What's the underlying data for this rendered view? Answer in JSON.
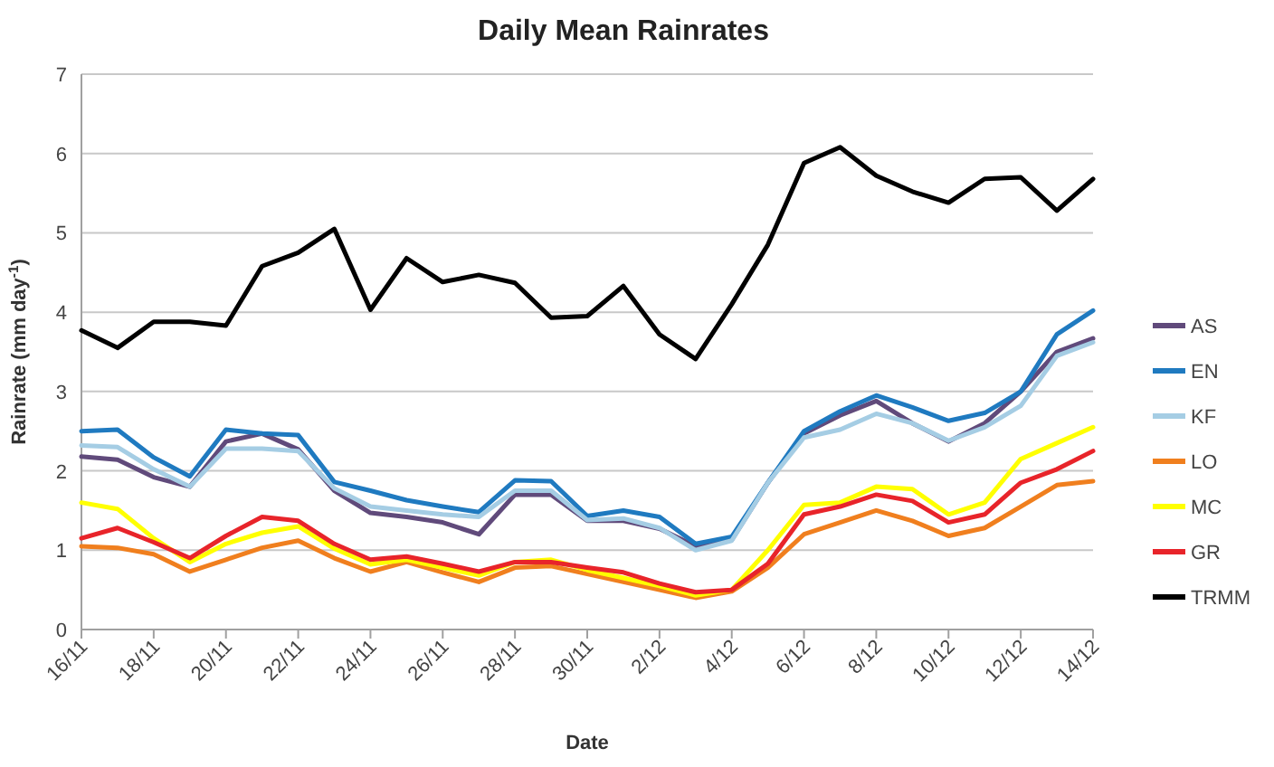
{
  "chart_data": {
    "type": "line",
    "title": "Daily Mean Rainrates",
    "xlabel": "Date",
    "ylabel": "Rainrate (mm day$^{-1}$)",
    "categories": [
      "16/11",
      null,
      "18/11",
      null,
      "20/11",
      null,
      "22/11",
      null,
      "24/11",
      null,
      "26/11",
      null,
      "28/11",
      null,
      "30/11",
      null,
      "2/12",
      null,
      "4/12",
      null,
      "6/12",
      null,
      "8/12",
      null,
      "10/12",
      null,
      "12/12",
      null,
      "14/12"
    ],
    "series": [
      {
        "name": "AS",
        "color": "#604a7b",
        "values": [
          2.18,
          2.14,
          1.92,
          1.8,
          2.37,
          2.47,
          2.27,
          1.75,
          1.47,
          1.42,
          1.35,
          1.2,
          1.7,
          1.7,
          1.37,
          1.37,
          1.27,
          1.05,
          1.13,
          1.85,
          2.47,
          2.7,
          2.88,
          2.6,
          2.37,
          2.6,
          3.0,
          3.5,
          3.67
        ]
      },
      {
        "name": "EN",
        "color": "#1f7ac0",
        "values": [
          2.5,
          2.52,
          2.17,
          1.93,
          2.52,
          2.47,
          2.45,
          1.86,
          1.75,
          1.63,
          1.55,
          1.48,
          1.88,
          1.87,
          1.43,
          1.5,
          1.42,
          1.08,
          1.17,
          1.85,
          2.5,
          2.75,
          2.95,
          2.8,
          2.63,
          2.73,
          3.0,
          3.72,
          4.02
        ]
      },
      {
        "name": "KF",
        "color": "#a5cde4",
        "values": [
          2.32,
          2.3,
          2.02,
          1.8,
          2.28,
          2.28,
          2.25,
          1.78,
          1.55,
          1.5,
          1.45,
          1.42,
          1.75,
          1.75,
          1.38,
          1.4,
          1.28,
          1.0,
          1.12,
          1.85,
          2.42,
          2.52,
          2.72,
          2.6,
          2.38,
          2.55,
          2.82,
          3.45,
          3.62
        ]
      },
      {
        "name": "LO",
        "color": "#f07f1e",
        "values": [
          1.05,
          1.03,
          0.95,
          0.73,
          0.88,
          1.03,
          1.12,
          0.9,
          0.73,
          0.85,
          0.72,
          0.6,
          0.78,
          0.8,
          0.7,
          0.6,
          0.5,
          0.4,
          0.48,
          0.78,
          1.2,
          1.35,
          1.5,
          1.37,
          1.18,
          1.28,
          1.55,
          1.82,
          1.87
        ]
      },
      {
        "name": "MC",
        "color": "#ffff00",
        "values": [
          1.6,
          1.52,
          1.15,
          0.85,
          1.08,
          1.22,
          1.3,
          1.02,
          0.82,
          0.88,
          0.78,
          0.68,
          0.85,
          0.88,
          0.75,
          0.65,
          0.55,
          0.43,
          0.5,
          1.0,
          1.57,
          1.6,
          1.8,
          1.77,
          1.45,
          1.6,
          2.15,
          2.35,
          2.55
        ]
      },
      {
        "name": "GR",
        "color": "#e8242a",
        "values": [
          1.15,
          1.28,
          1.1,
          0.9,
          1.18,
          1.42,
          1.37,
          1.08,
          0.88,
          0.92,
          0.83,
          0.73,
          0.85,
          0.85,
          0.78,
          0.72,
          0.58,
          0.47,
          0.5,
          0.83,
          1.45,
          1.55,
          1.7,
          1.62,
          1.35,
          1.45,
          1.85,
          2.02,
          2.25
        ]
      },
      {
        "name": "TRMM",
        "color": "#000000",
        "values": [
          3.77,
          3.55,
          3.88,
          3.88,
          3.83,
          4.58,
          4.75,
          5.05,
          4.03,
          4.68,
          4.38,
          4.47,
          4.37,
          3.93,
          3.95,
          4.33,
          3.72,
          3.41,
          4.1,
          4.85,
          5.88,
          6.08,
          5.72,
          5.52,
          5.38,
          5.68,
          5.7,
          5.28,
          5.68
        ]
      }
    ],
    "ylim": [
      0,
      7
    ],
    "yticks": [
      0,
      1,
      2,
      3,
      4,
      5,
      6,
      7
    ],
    "grid": "y",
    "legend": "right",
    "marker": "none",
    "line_style": "solid"
  }
}
